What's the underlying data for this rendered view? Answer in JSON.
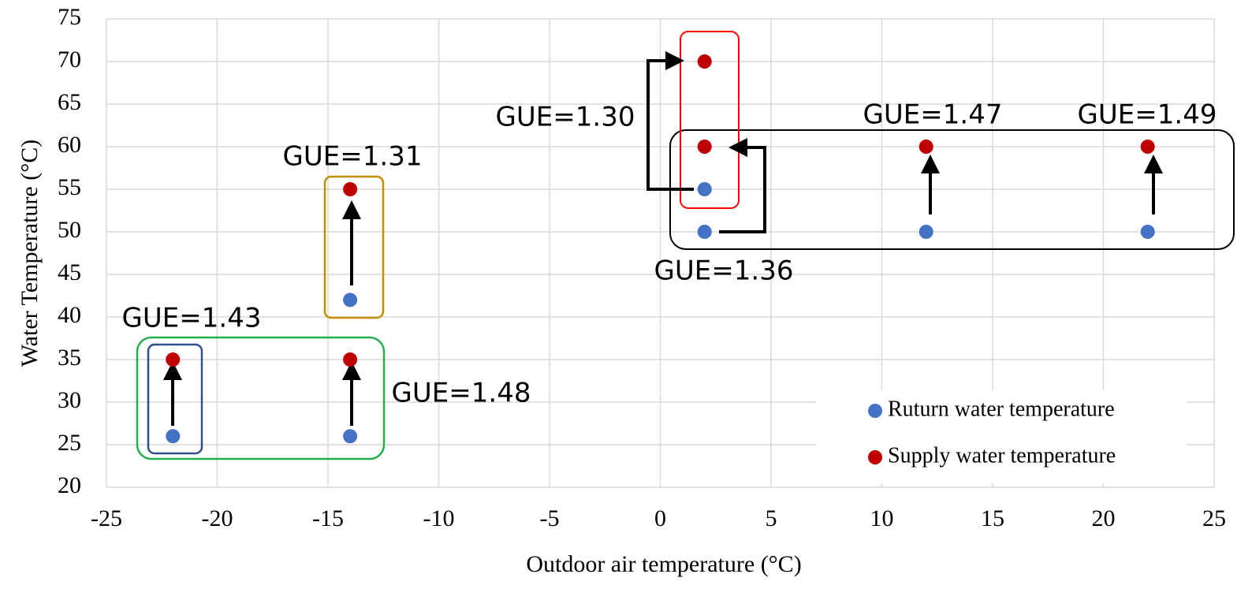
{
  "chart_data": {
    "type": "scatter",
    "xlabel": "Outdoor air temperature (°C)",
    "ylabel": "Water Temperature (°C)",
    "series": [
      {
        "name": "Ruturn water temperature",
        "color": "#4472c4",
        "x": [
          -22,
          -14,
          -14,
          2,
          2,
          12,
          22
        ],
        "values": [
          26,
          26,
          42,
          50,
          55,
          50,
          50
        ]
      },
      {
        "name": "Supply water temperature",
        "color": "#c00000",
        "x": [
          -22,
          -14,
          -14,
          2,
          2,
          12,
          22
        ],
        "values": [
          35,
          35,
          55,
          60,
          70,
          60,
          60
        ]
      }
    ],
    "xlim": [
      -25,
      25
    ],
    "xticks": [
      -25,
      -20,
      -15,
      -10,
      -5,
      0,
      5,
      10,
      15,
      20,
      25
    ],
    "ylim": [
      20,
      75
    ],
    "yticks": [
      20,
      25,
      30,
      35,
      40,
      45,
      50,
      55,
      60,
      65,
      70,
      75
    ],
    "grid": true,
    "legend": "lower right",
    "annotations": [
      "GUE=1.43",
      "GUE=1.48",
      "GUE=1.31",
      "GUE=1.30",
      "GUE=1.36",
      "GUE=1.47",
      "GUE=1.49"
    ]
  }
}
